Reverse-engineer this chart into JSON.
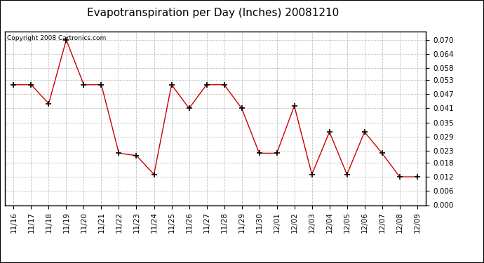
{
  "title": "Evapotranspiration per Day (Inches) 20081210",
  "copyright_text": "Copyright 2008 Cartronics.com",
  "x_labels": [
    "11/16",
    "11/17",
    "11/18",
    "11/19",
    "11/20",
    "11/21",
    "11/22",
    "11/23",
    "11/24",
    "11/25",
    "11/26",
    "11/27",
    "11/28",
    "11/29",
    "11/30",
    "12/01",
    "12/02",
    "12/03",
    "12/04",
    "12/05",
    "12/06",
    "12/07",
    "12/08",
    "12/09"
  ],
  "y_values": [
    0.051,
    0.051,
    0.043,
    0.07,
    0.051,
    0.051,
    0.022,
    0.021,
    0.013,
    0.051,
    0.041,
    0.051,
    0.051,
    0.041,
    0.022,
    0.022,
    0.042,
    0.013,
    0.031,
    0.013,
    0.031,
    0.022,
    0.012,
    0.012
  ],
  "ylim": [
    0.0,
    0.0735
  ],
  "yticks": [
    0.0,
    0.006,
    0.012,
    0.018,
    0.023,
    0.029,
    0.035,
    0.041,
    0.047,
    0.053,
    0.058,
    0.064,
    0.07
  ],
  "line_color": "#cc0000",
  "marker": "+",
  "marker_size": 6,
  "marker_color": "#000000",
  "bg_color": "#ffffff",
  "plot_bg_color": "#ffffff",
  "grid_color": "#bbbbbb",
  "title_fontsize": 11,
  "tick_fontsize": 7.5,
  "copyright_fontsize": 6.5
}
